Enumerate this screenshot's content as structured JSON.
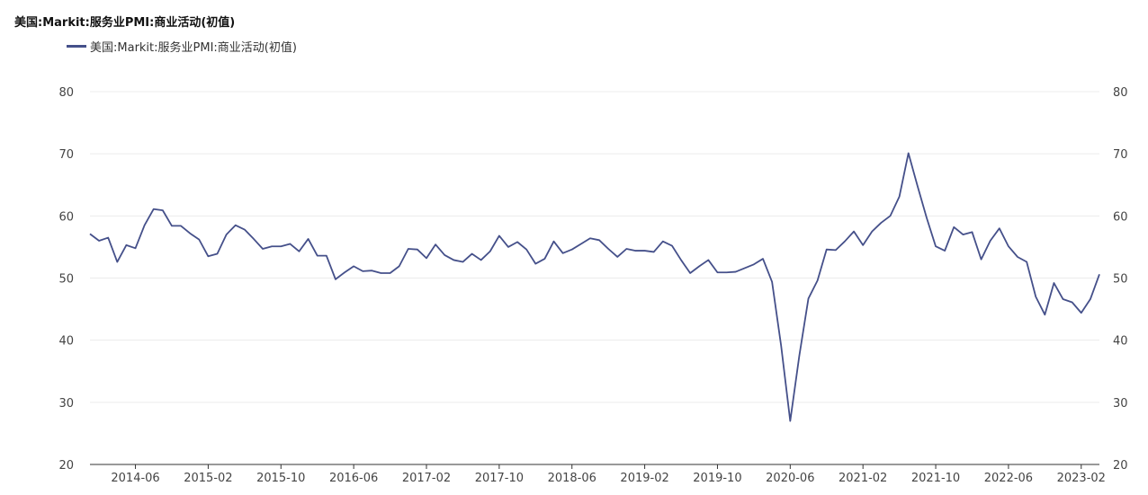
{
  "chart_data": {
    "type": "line",
    "title": "美国:Markit:服务业PMI:商业活动(初值)",
    "xlabel": "",
    "ylabel": "",
    "ylim": [
      20,
      80
    ],
    "yticks": [
      20,
      30,
      40,
      50,
      60,
      70,
      80
    ],
    "xtick_labels": [
      "2014-06",
      "2015-02",
      "2015-10",
      "2016-06",
      "2017-02",
      "2017-10",
      "2018-06",
      "2019-02",
      "2019-10",
      "2020-06",
      "2021-02",
      "2021-10",
      "2022-06",
      "2023-02"
    ],
    "x_start": "2014-01",
    "grid": "horizontal",
    "legend_position": "top-left",
    "line_color": "#45508a",
    "series": [
      {
        "name": "美国:Markit:服务业PMI:商业活动(初值)",
        "values": [
          57.1,
          56.0,
          56.5,
          52.6,
          55.3,
          54.8,
          58.5,
          61.1,
          60.9,
          58.4,
          58.4,
          57.2,
          56.2,
          53.5,
          53.9,
          57.0,
          58.5,
          57.8,
          56.3,
          54.7,
          55.1,
          55.1,
          55.5,
          54.3,
          56.3,
          53.6,
          53.6,
          49.8,
          50.9,
          51.9,
          51.1,
          51.2,
          50.8,
          50.8,
          51.9,
          54.7,
          54.6,
          53.2,
          55.4,
          53.7,
          52.9,
          52.6,
          53.9,
          52.9,
          54.3,
          56.8,
          55.0,
          55.8,
          54.6,
          52.3,
          53.1,
          55.9,
          54.0,
          54.6,
          55.5,
          56.4,
          56.1,
          54.7,
          53.4,
          54.7,
          54.4,
          54.4,
          54.2,
          55.9,
          55.2,
          52.9,
          50.8,
          51.9,
          52.9,
          50.9,
          50.9,
          51.0,
          51.6,
          52.2,
          53.1,
          49.4,
          39.1,
          27.0,
          37.5,
          46.7,
          49.6,
          54.6,
          54.5,
          55.9,
          57.5,
          55.3,
          57.5,
          58.9,
          60.0,
          63.1,
          70.1,
          64.8,
          59.7,
          55.1,
          54.4,
          58.2,
          57.0,
          57.4,
          53.0,
          56.0,
          58.0,
          55.1,
          53.4,
          52.6,
          47.0,
          44.1,
          49.2,
          46.6,
          46.1,
          44.4,
          46.6,
          50.6
        ]
      }
    ]
  }
}
